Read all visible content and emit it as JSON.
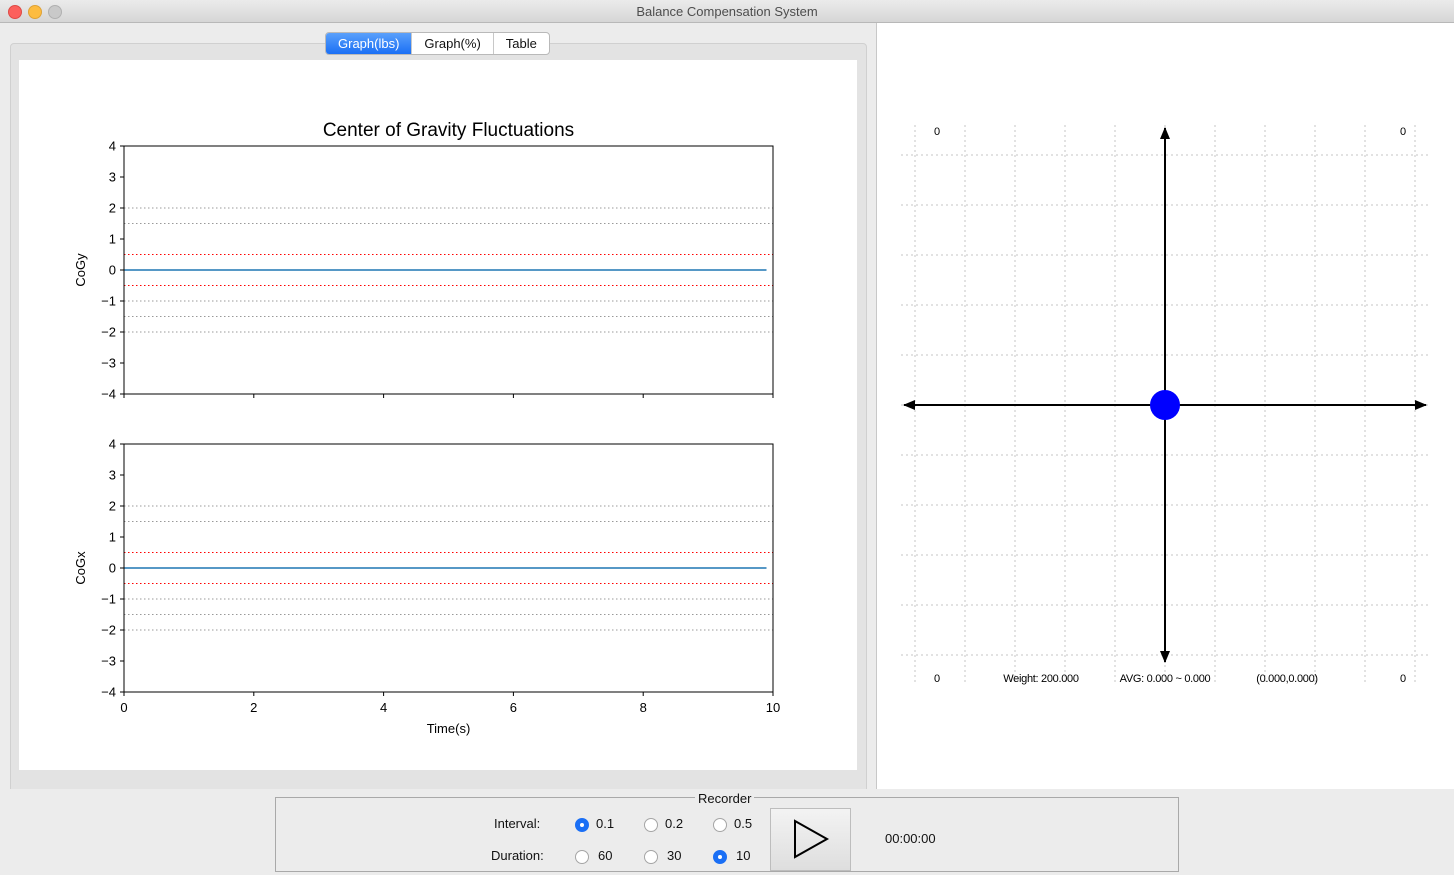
{
  "window": {
    "title": "Balance Compensation System"
  },
  "tabs": [
    {
      "label": "Graph(lbs)",
      "active": true
    },
    {
      "label": "Graph(%)",
      "active": false
    },
    {
      "label": "Table",
      "active": false
    }
  ],
  "chart_data": [
    {
      "type": "line",
      "title": "Center of Gravity Fluctuations",
      "ylabel": "CoGy",
      "xlabel": "",
      "xlim": [
        0,
        10
      ],
      "ylim": [
        -4,
        4
      ],
      "yticks": [
        "4",
        "3",
        "2",
        "1",
        "0",
        "−1",
        "−2",
        "−3",
        "−4"
      ],
      "xticks": [],
      "series": [
        {
          "x": [
            0,
            9.9
          ],
          "y": [
            0,
            0
          ],
          "color": "#1f77b4"
        }
      ],
      "reference_lines": [
        {
          "y": 2,
          "color": "#999999",
          "style": "dotted"
        },
        {
          "y": 1.5,
          "color": "#999999",
          "style": "dotted"
        },
        {
          "y": 0.5,
          "color": "#ff0000",
          "style": "dotted"
        },
        {
          "y": -0.5,
          "color": "#ff0000",
          "style": "dotted"
        },
        {
          "y": -1,
          "color": "#999999",
          "style": "dotted"
        },
        {
          "y": -1.5,
          "color": "#999999",
          "style": "dotted"
        },
        {
          "y": -2,
          "color": "#999999",
          "style": "dotted"
        }
      ]
    },
    {
      "type": "line",
      "title": "",
      "ylabel": "CoGx",
      "xlabel": "Time(s)",
      "xlim": [
        0,
        10
      ],
      "ylim": [
        -4,
        4
      ],
      "yticks": [
        "4",
        "3",
        "2",
        "1",
        "0",
        "−1",
        "−2",
        "−3",
        "−4"
      ],
      "xticks": [
        "0",
        "2",
        "4",
        "6",
        "8",
        "10"
      ],
      "series": [
        {
          "x": [
            0,
            9.9
          ],
          "y": [
            0,
            0
          ],
          "color": "#1f77b4"
        }
      ],
      "reference_lines": [
        {
          "y": 2,
          "color": "#999999",
          "style": "dotted"
        },
        {
          "y": 1.5,
          "color": "#999999",
          "style": "dotted"
        },
        {
          "y": 0.5,
          "color": "#ff0000",
          "style": "dotted"
        },
        {
          "y": -0.5,
          "color": "#ff0000",
          "style": "dotted"
        },
        {
          "y": -1,
          "color": "#999999",
          "style": "dotted"
        },
        {
          "y": -1.5,
          "color": "#999999",
          "style": "dotted"
        },
        {
          "y": -2,
          "color": "#999999",
          "style": "dotted"
        }
      ]
    }
  ],
  "balance_plot": {
    "corner_top_left": "0",
    "corner_top_right": "0",
    "corner_bottom_left": "0",
    "corner_bottom_right": "0",
    "weight": "Weight: 200.000",
    "avg": "AVG: 0.000 ~ 0.000",
    "coords": "(0.000,0.000)",
    "point": {
      "x": 0,
      "y": 0
    },
    "point_color": "#0000ff"
  },
  "recorder": {
    "title": "Recorder",
    "interval_label": "Interval:",
    "interval_options": [
      {
        "label": "0.1",
        "selected": true
      },
      {
        "label": "0.2",
        "selected": false
      },
      {
        "label": "0.5",
        "selected": false
      }
    ],
    "duration_label": "Duration:",
    "duration_options": [
      {
        "label": "60",
        "selected": false
      },
      {
        "label": "30",
        "selected": false
      },
      {
        "label": "10",
        "selected": true
      }
    ],
    "play_icon": "play-icon",
    "timer": "00:00:00"
  }
}
